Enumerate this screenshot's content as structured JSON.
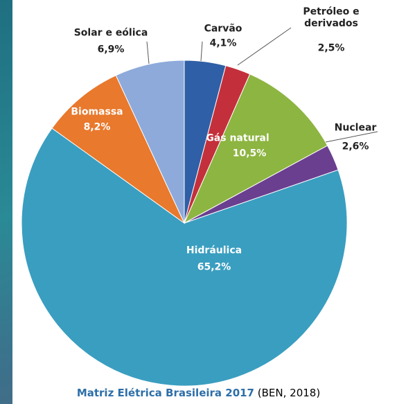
{
  "chart_data": {
    "type": "pie",
    "title": "Matriz Elétrica Brasileira 2017",
    "source": "(BEN, 2018)",
    "categories": [
      "Carvão",
      "Petróleo e derivados",
      "Gás natural",
      "Nuclear",
      "Hidráulica",
      "Biomassa",
      "Solar e eólica"
    ],
    "values": [
      4.1,
      2.5,
      10.5,
      2.6,
      65.2,
      8.2,
      6.9
    ],
    "value_labels": [
      "4,1%",
      "2,5%",
      "10,5%",
      "2,6%",
      "65,2%",
      "8,2%",
      "6,9%"
    ],
    "colors": [
      "#2f5fa6",
      "#c3303b",
      "#8db541",
      "#6b3f90",
      "#3a9ec0",
      "#e8792d",
      "#8eaadb"
    ]
  }
}
